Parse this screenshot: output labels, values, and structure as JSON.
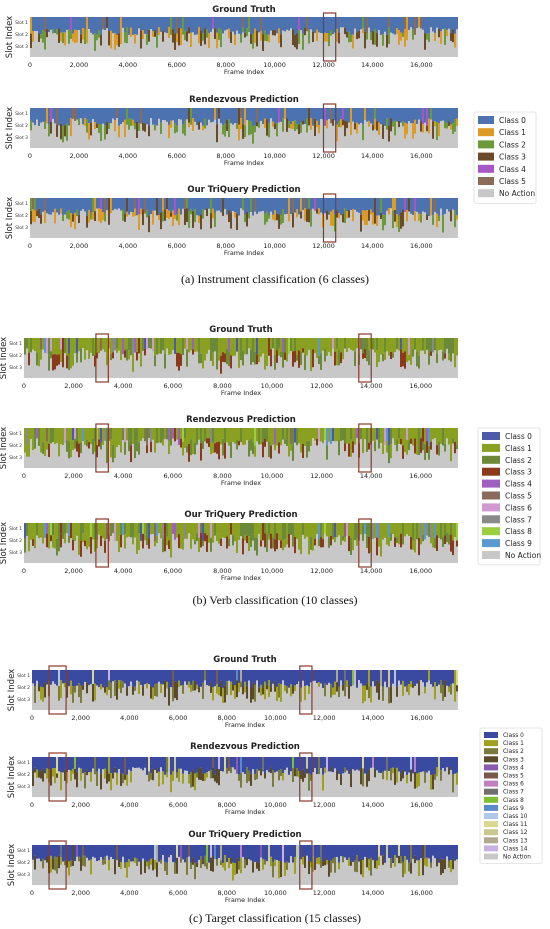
{
  "captions": [
    "(a) Instrument classification (6 classes)",
    "(b) Verb classification (10 classes)",
    "(c) Target classification (15 classes)"
  ],
  "chart_data": [
    {
      "type": "heatmap",
      "group": "a",
      "panel_titles": [
        "Ground Truth",
        "Rendezvous Prediction",
        "Our TriQuery Prediction"
      ],
      "ylabel": "Slot Index",
      "xlabel": "Frame Index",
      "y_categories": [
        "Slot 1",
        "Slot 2",
        "Slot 3"
      ],
      "x_ticks": [
        "0",
        "2,000",
        "4,000",
        "6,000",
        "8,000",
        "10,000",
        "12,000",
        "14,000",
        "16,000"
      ],
      "xlim": [
        0,
        17500
      ],
      "highlight_range": [
        12000,
        12500
      ],
      "legend": [
        {
          "label": "Class 0",
          "color": "#4c72b0"
        },
        {
          "label": "Class 1",
          "color": "#dd9a25"
        },
        {
          "label": "Class 2",
          "color": "#6a9a3a"
        },
        {
          "label": "Class 3",
          "color": "#6b4a2a"
        },
        {
          "label": "Class 4",
          "color": "#a855c8"
        },
        {
          "label": "Class 5",
          "color": "#8c6a58"
        },
        {
          "label": "No Action",
          "color": "#c8c8c8"
        }
      ]
    },
    {
      "type": "heatmap",
      "group": "b",
      "panel_titles": [
        "Ground Truth",
        "Rendezvous Prediction",
        "Our TriQuery Prediction"
      ],
      "ylabel": "Slot Index",
      "xlabel": "Frame Index",
      "y_categories": [
        "Slot 1",
        "Slot 2",
        "Slot 3"
      ],
      "x_ticks": [
        "0",
        "2,000",
        "4,000",
        "6,000",
        "8,000",
        "10,000",
        "12,000",
        "14,000",
        "16,000"
      ],
      "xlim": [
        0,
        17500
      ],
      "highlight_range": [
        2900,
        3400
      ],
      "highlight_range_2": [
        13500,
        14000
      ],
      "legend": [
        {
          "label": "Class 0",
          "color": "#4c5aa8"
        },
        {
          "label": "Class 1",
          "color": "#8aa020"
        },
        {
          "label": "Class 2",
          "color": "#6a8a3a"
        },
        {
          "label": "Class 3",
          "color": "#8a3a1a"
        },
        {
          "label": "Class 4",
          "color": "#a060c0"
        },
        {
          "label": "Class 5",
          "color": "#8a6a5a"
        },
        {
          "label": "Class 6",
          "color": "#d09ad0"
        },
        {
          "label": "Class 7",
          "color": "#8a8a8a"
        },
        {
          "label": "Class 8",
          "color": "#9ad040"
        },
        {
          "label": "Class 9",
          "color": "#5a9ad0"
        },
        {
          "label": "No Action",
          "color": "#c8c8c8"
        }
      ]
    },
    {
      "type": "heatmap",
      "group": "c",
      "panel_titles": [
        "Ground Truth",
        "Rendezvous Prediction",
        "Our TriQuery Prediction"
      ],
      "ylabel": "Slot Index",
      "xlabel": "Frame Index",
      "y_categories": [
        "Slot 1",
        "Slot 2",
        "Slot 3"
      ],
      "x_ticks": [
        "0",
        "2,000",
        "4,000",
        "6,000",
        "8,000",
        "10,000",
        "12,000",
        "14,000",
        "16,000"
      ],
      "xlim": [
        0,
        17500
      ],
      "highlight_range": [
        700,
        1400
      ],
      "highlight_range_2": [
        11000,
        11500
      ],
      "legend": [
        {
          "label": "Class 0",
          "color": "#3a4aa0"
        },
        {
          "label": "Class 1",
          "color": "#a0a020"
        },
        {
          "label": "Class 2",
          "color": "#7a7a3a"
        },
        {
          "label": "Class 3",
          "color": "#5a4a2a"
        },
        {
          "label": "Class 4",
          "color": "#8a5ab0"
        },
        {
          "label": "Class 5",
          "color": "#7a5a4a"
        },
        {
          "label": "Class 6",
          "color": "#c080c0"
        },
        {
          "label": "Class 7",
          "color": "#707070"
        },
        {
          "label": "Class 8",
          "color": "#80c030"
        },
        {
          "label": "Class 9",
          "color": "#5a8ac8"
        },
        {
          "label": "Class 10",
          "color": "#b0c8e8"
        },
        {
          "label": "Class 11",
          "color": "#d8d890"
        },
        {
          "label": "Class 12",
          "color": "#c8c890"
        },
        {
          "label": "Class 13",
          "color": "#b0a890"
        },
        {
          "label": "Class 14",
          "color": "#c8b0e0"
        },
        {
          "label": "No Action",
          "color": "#c8c8c8"
        }
      ]
    }
  ]
}
